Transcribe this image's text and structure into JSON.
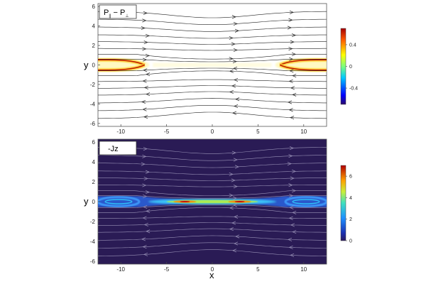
{
  "chart_data": [
    {
      "type": "heatmap",
      "title": "P∥ − P⊥",
      "title_main": "P",
      "title_sub1": "||",
      "title_minus": " − P",
      "title_sub2": "⊥",
      "xlabel": "",
      "ylabel": "y",
      "xlim": [
        -12.5,
        12.5
      ],
      "ylim": [
        -6.3,
        6.3
      ],
      "xticks": [
        -10,
        -5,
        0,
        5,
        10
      ],
      "yticks": [
        -6,
        -4,
        -2,
        0,
        2,
        4,
        6
      ],
      "colorbar": {
        "min": -0.7,
        "max": 0.7,
        "ticks": [
          0.4,
          0,
          -0.4
        ]
      },
      "colormap": "jet",
      "background": "#ffffff",
      "streamline_color": "#222222",
      "streamline_y": [
        -5.5,
        -4.7,
        -3.9,
        -3.1,
        -2.4,
        -1.7,
        -1.1,
        -0.6,
        0.6,
        1.1,
        1.7,
        2.4,
        3.1,
        3.9,
        4.7,
        5.5
      ],
      "field_description": "positive ring near |y|≈0.5 at the X-ends, faint near center"
    },
    {
      "type": "heatmap",
      "title": "-Jz",
      "xlabel": "x",
      "ylabel": "y",
      "xlim": [
        -12.5,
        12.5
      ],
      "ylim": [
        -6.3,
        6.3
      ],
      "xticks": [
        -10,
        -5,
        0,
        5,
        10
      ],
      "yticks": [
        -6,
        -4,
        -2,
        0,
        2,
        4,
        6
      ],
      "colorbar": {
        "min": 0,
        "max": 7,
        "ticks": [
          6,
          4,
          2,
          0
        ]
      },
      "colormap": "jet",
      "background": "#2a1b55",
      "streamline_color": "#9a93b8",
      "streamline_y": [
        -5.5,
        -4.7,
        -3.9,
        -3.1,
        -2.4,
        -1.7,
        -1.1,
        -0.6,
        0.6,
        1.1,
        1.7,
        2.4,
        3.1,
        3.9,
        4.7,
        5.5
      ],
      "field_description": "thin current sheet along y≈0, peak ~6 near x=±3"
    }
  ]
}
